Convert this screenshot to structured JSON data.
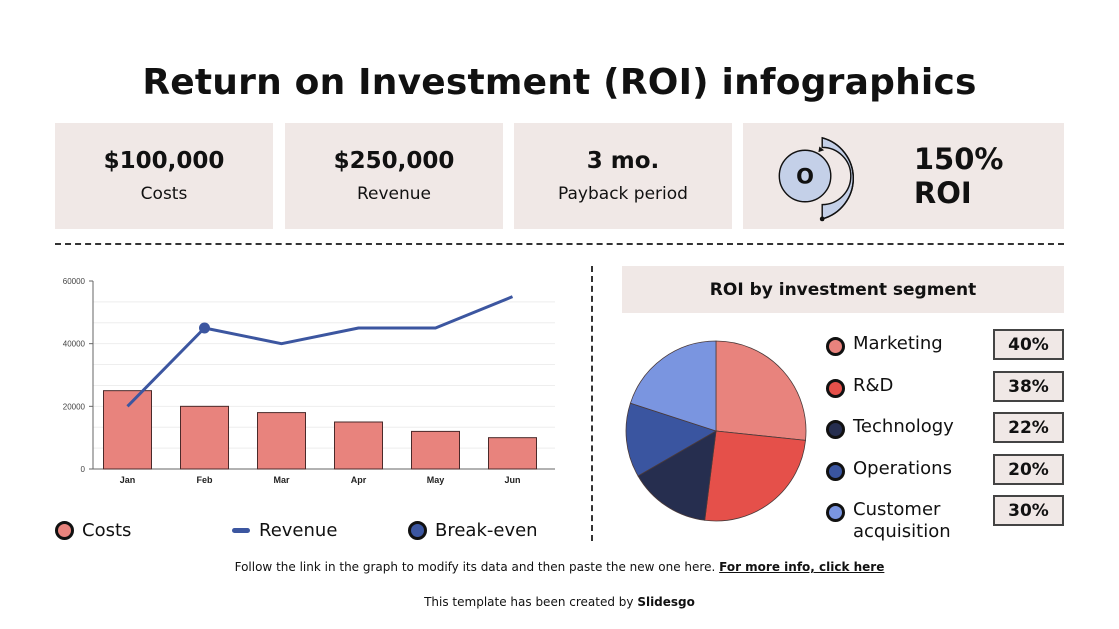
{
  "title": "Return on Investment (ROI) infographics",
  "stats": [
    {
      "value": "$100,000",
      "label": "Costs"
    },
    {
      "value": "$250,000",
      "label": "Revenue"
    },
    {
      "value": "3 mo.",
      "label": "Payback period"
    }
  ],
  "roi": {
    "text": "150% ROI",
    "icon": "circular-arrow-coin-icon",
    "icon_letter": "O"
  },
  "segments_header": "ROI by investment segment",
  "legend": [
    {
      "label": "Costs",
      "icon": "circle-marker",
      "color": "#E8837D"
    },
    {
      "label": "Revenue",
      "icon": "line-marker",
      "color": "#3C56A0"
    },
    {
      "label": "Break-even",
      "icon": "circle-marker",
      "color": "#3C56A0"
    }
  ],
  "segments": [
    {
      "label": "Marketing",
      "value": "40%",
      "color": "#E8837D"
    },
    {
      "label": "R&D",
      "value": "38%",
      "color": "#E5504A"
    },
    {
      "label": "Technology",
      "value": "22%",
      "color": "#262E4F"
    },
    {
      "label": "Operations",
      "value": "20%",
      "color": "#3A55A0"
    },
    {
      "label": "Customer acquisition",
      "value": "30%",
      "color": "#7A95E0"
    }
  ],
  "footer": {
    "text": "Follow the link in the graph to modify its data and then paste the new one here.",
    "link": "For more info, click here",
    "credit_prefix": "This template has been created by",
    "credit_brand": "Slidesgo"
  },
  "colors": {
    "card_bg": "#F0E8E6",
    "costs": "#E8837D",
    "revenue": "#3C56A0"
  },
  "chart_data": [
    {
      "type": "bar",
      "title": "",
      "xlabel": "",
      "ylabel": "",
      "categories": [
        "Jan",
        "Feb",
        "Mar",
        "Apr",
        "May",
        "Jun"
      ],
      "series": [
        {
          "name": "Costs",
          "type": "bar",
          "values": [
            25000,
            20000,
            18000,
            15000,
            12000,
            10000
          ],
          "color": "#E8837D"
        },
        {
          "name": "Revenue",
          "type": "line",
          "values": [
            20000,
            45000,
            40000,
            45000,
            45000,
            55000
          ],
          "color": "#3C56A0"
        }
      ],
      "annotations": [
        {
          "label": "Break-even",
          "x": "Feb",
          "y": 45000
        }
      ],
      "ylim": [
        0,
        60000
      ],
      "yticks": [
        0,
        20000,
        40000,
        60000
      ],
      "grid": true,
      "legend_position": "bottom"
    },
    {
      "type": "pie",
      "title": "ROI by investment segment",
      "categories": [
        "Marketing",
        "R&D",
        "Technology",
        "Operations",
        "Customer acquisition"
      ],
      "values": [
        40,
        38,
        22,
        20,
        30
      ],
      "colors": [
        "#E8837D",
        "#E5504A",
        "#262E4F",
        "#3A55A0",
        "#7A95E0"
      ],
      "legend_position": "right"
    }
  ]
}
